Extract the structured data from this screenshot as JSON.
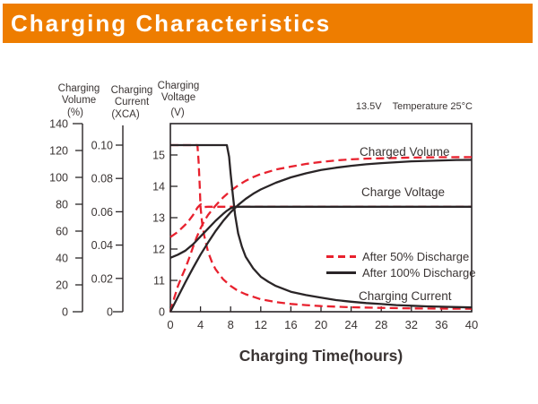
{
  "header": {
    "title": "Charging Characteristics"
  },
  "annotation": {
    "voltage": "13.5V",
    "temperature": "Temperature 25°C"
  },
  "axes": {
    "volume": {
      "title_lines": [
        "Charging",
        "Volume"
      ],
      "unit": "(%)",
      "range": [
        0,
        140
      ],
      "ticks": [
        {
          "value": 0,
          "label": "0"
        },
        {
          "value": 20,
          "label": "20"
        },
        {
          "value": 40,
          "label": "40"
        },
        {
          "value": 60,
          "label": "60"
        },
        {
          "value": 80,
          "label": "80"
        },
        {
          "value": 100,
          "label": "100"
        },
        {
          "value": 120,
          "label": "120"
        },
        {
          "value": 140,
          "label": "140"
        }
      ]
    },
    "current": {
      "title_lines": [
        "Charging",
        "Current"
      ],
      "unit": "(XCA)",
      "range": [
        0,
        0.1
      ],
      "ticks": [
        {
          "value": 0,
          "label": "0"
        },
        {
          "value": 0.02,
          "label": "0.02"
        },
        {
          "value": 0.04,
          "label": "0.04"
        },
        {
          "value": 0.06,
          "label": "0.06"
        },
        {
          "value": 0.08,
          "label": "0.08"
        },
        {
          "value": 0.1,
          "label": "0.10"
        }
      ]
    },
    "voltage": {
      "title_lines": [
        "Charging",
        "Voltage"
      ],
      "unit": "(V)",
      "range": [
        11,
        15
      ],
      "ticks": [
        {
          "value": 0,
          "label": "0"
        },
        {
          "value": 11,
          "label": "11"
        },
        {
          "value": 12,
          "label": "12"
        },
        {
          "value": 13,
          "label": "13"
        },
        {
          "value": 14,
          "label": "14"
        },
        {
          "value": 15,
          "label": "15"
        }
      ]
    }
  },
  "x_axis": {
    "title": "Charging Time(hours)",
    "ticks": [
      0,
      4,
      8,
      12,
      16,
      20,
      24,
      28,
      32,
      36,
      40
    ]
  },
  "curve_labels": {
    "charged_volume": "Charged Volume",
    "charge_voltage": "Charge Voltage",
    "charging_current": "Charging Current"
  },
  "legend": [
    {
      "label": "After 50% Discharge",
      "style": "dashed",
      "color": "#e8212e"
    },
    {
      "label": "After 100% Discharge",
      "style": "solid",
      "color": "#2a2527"
    }
  ],
  "colors": {
    "accent_orange": "#ee7d00",
    "series_red": "#e8212e",
    "series_black": "#2a2527",
    "text": "#3a3433"
  },
  "chart_data": {
    "type": "line",
    "title": "Charging Characteristics",
    "xlabel": "Charging Time(hours)",
    "xlim": [
      0,
      40
    ],
    "grid": false,
    "legend_position": "center-right",
    "axes_note": "three y scales: volume 0-140 %, current 0-0.10 XCA, voltage 11-15 V (broken at 0)",
    "series": [
      {
        "name": "Charged Volume After 50% Discharge",
        "axis": "volume",
        "style": "dashed",
        "color": "#e8212e",
        "points": [
          [
            0,
            0
          ],
          [
            0.5,
            10
          ],
          [
            1,
            19
          ],
          [
            1.5,
            26
          ],
          [
            2,
            32.5
          ],
          [
            2.5,
            40
          ],
          [
            3,
            48
          ],
          [
            3.5,
            55.5
          ],
          [
            4,
            62
          ],
          [
            4.5,
            67.5
          ],
          [
            5,
            72
          ],
          [
            6,
            79
          ],
          [
            7,
            85
          ],
          [
            8,
            90
          ],
          [
            9,
            94
          ],
          [
            10,
            97.5
          ],
          [
            11,
            100.2
          ],
          [
            12,
            102.5
          ],
          [
            14,
            105.8
          ],
          [
            16,
            108
          ],
          [
            18,
            110
          ],
          [
            20,
            111.5
          ],
          [
            22,
            112.6
          ],
          [
            24,
            113.4
          ],
          [
            26,
            113.9
          ],
          [
            28,
            114.2
          ],
          [
            32,
            114.7
          ],
          [
            36,
            115
          ],
          [
            40,
            115.1
          ]
        ]
      },
      {
        "name": "Charge Voltage After 50% Discharge",
        "axis": "voltage",
        "style": "dashed",
        "color": "#e8212e",
        "points": [
          [
            0,
            12.38
          ],
          [
            1,
            12.55
          ],
          [
            2,
            12.78
          ],
          [
            2.5,
            12.92
          ],
          [
            3,
            13.08
          ],
          [
            3.3,
            13.2
          ],
          [
            3.6,
            13.32
          ],
          [
            3.9,
            13.4
          ],
          [
            4.1,
            13.43
          ],
          [
            4.3,
            13.38
          ],
          [
            4.5,
            13.34
          ],
          [
            5,
            13.35
          ],
          [
            40,
            13.35
          ]
        ]
      },
      {
        "name": "Charging Current After 50% Discharge",
        "axis": "current",
        "style": "dashed",
        "color": "#e8212e",
        "points": [
          [
            0,
            0.1
          ],
          [
            3.6,
            0.1
          ],
          [
            3.75,
            0.09
          ],
          [
            3.9,
            0.075
          ],
          [
            4,
            0.063
          ],
          [
            4.2,
            0.054
          ],
          [
            4.5,
            0.0455
          ],
          [
            5,
            0.036
          ],
          [
            5.5,
            0.03
          ],
          [
            6,
            0.0255
          ],
          [
            7,
            0.0195
          ],
          [
            8,
            0.0155
          ],
          [
            9,
            0.0125
          ],
          [
            10,
            0.0105
          ],
          [
            12,
            0.0075
          ],
          [
            14,
            0.0058
          ],
          [
            16,
            0.0047
          ],
          [
            18,
            0.004
          ],
          [
            20,
            0.0034
          ],
          [
            24,
            0.0027
          ],
          [
            28,
            0.0023
          ],
          [
            32,
            0.002
          ],
          [
            36,
            0.0019
          ],
          [
            40,
            0.0018
          ]
        ]
      },
      {
        "name": "Charged Volume After 100% Discharge",
        "axis": "volume",
        "style": "solid",
        "color": "#2a2527",
        "points": [
          [
            0,
            0
          ],
          [
            1,
            11
          ],
          [
            2,
            22
          ],
          [
            3,
            32.5
          ],
          [
            4,
            42.5
          ],
          [
            5,
            51.5
          ],
          [
            6,
            60
          ],
          [
            7,
            67.5
          ],
          [
            8,
            74
          ],
          [
            9,
            79.5
          ],
          [
            10,
            84
          ],
          [
            11,
            87.8
          ],
          [
            12,
            91
          ],
          [
            14,
            96
          ],
          [
            16,
            100
          ],
          [
            18,
            103
          ],
          [
            20,
            105.5
          ],
          [
            22,
            107.2
          ],
          [
            24,
            108.6
          ],
          [
            26,
            109.7
          ],
          [
            28,
            110.6
          ],
          [
            30,
            111.3
          ],
          [
            32,
            111.9
          ],
          [
            34,
            112.3
          ],
          [
            36,
            112.6
          ],
          [
            38,
            112.9
          ],
          [
            40,
            113
          ]
        ]
      },
      {
        "name": "Charge Voltage After 100% Discharge",
        "axis": "voltage",
        "style": "solid",
        "color": "#2a2527",
        "points": [
          [
            0,
            11.72
          ],
          [
            1,
            11.82
          ],
          [
            2,
            11.95
          ],
          [
            3,
            12.15
          ],
          [
            4,
            12.4
          ],
          [
            5,
            12.65
          ],
          [
            6,
            12.9
          ],
          [
            7,
            13.12
          ],
          [
            7.5,
            13.22
          ],
          [
            8,
            13.3
          ],
          [
            8.5,
            13.34
          ],
          [
            9,
            13.35
          ],
          [
            40,
            13.35
          ]
        ]
      },
      {
        "name": "Charging Current After 100% Discharge",
        "axis": "current",
        "style": "solid",
        "color": "#2a2527",
        "points": [
          [
            0,
            0.1
          ],
          [
            7.5,
            0.1
          ],
          [
            7.8,
            0.093
          ],
          [
            8,
            0.083
          ],
          [
            8.3,
            0.07
          ],
          [
            8.6,
            0.058
          ],
          [
            9,
            0.047
          ],
          [
            9.5,
            0.039
          ],
          [
            10,
            0.033
          ],
          [
            11,
            0.026
          ],
          [
            12,
            0.021
          ],
          [
            13,
            0.018
          ],
          [
            14,
            0.0155
          ],
          [
            16,
            0.012
          ],
          [
            18,
            0.01
          ],
          [
            20,
            0.0085
          ],
          [
            22,
            0.007
          ],
          [
            24,
            0.006
          ],
          [
            26,
            0.0052
          ],
          [
            28,
            0.0046
          ],
          [
            30,
            0.004
          ],
          [
            32,
            0.0036
          ],
          [
            34,
            0.0032
          ],
          [
            36,
            0.003
          ],
          [
            38,
            0.0028
          ],
          [
            40,
            0.0026
          ]
        ]
      }
    ]
  }
}
